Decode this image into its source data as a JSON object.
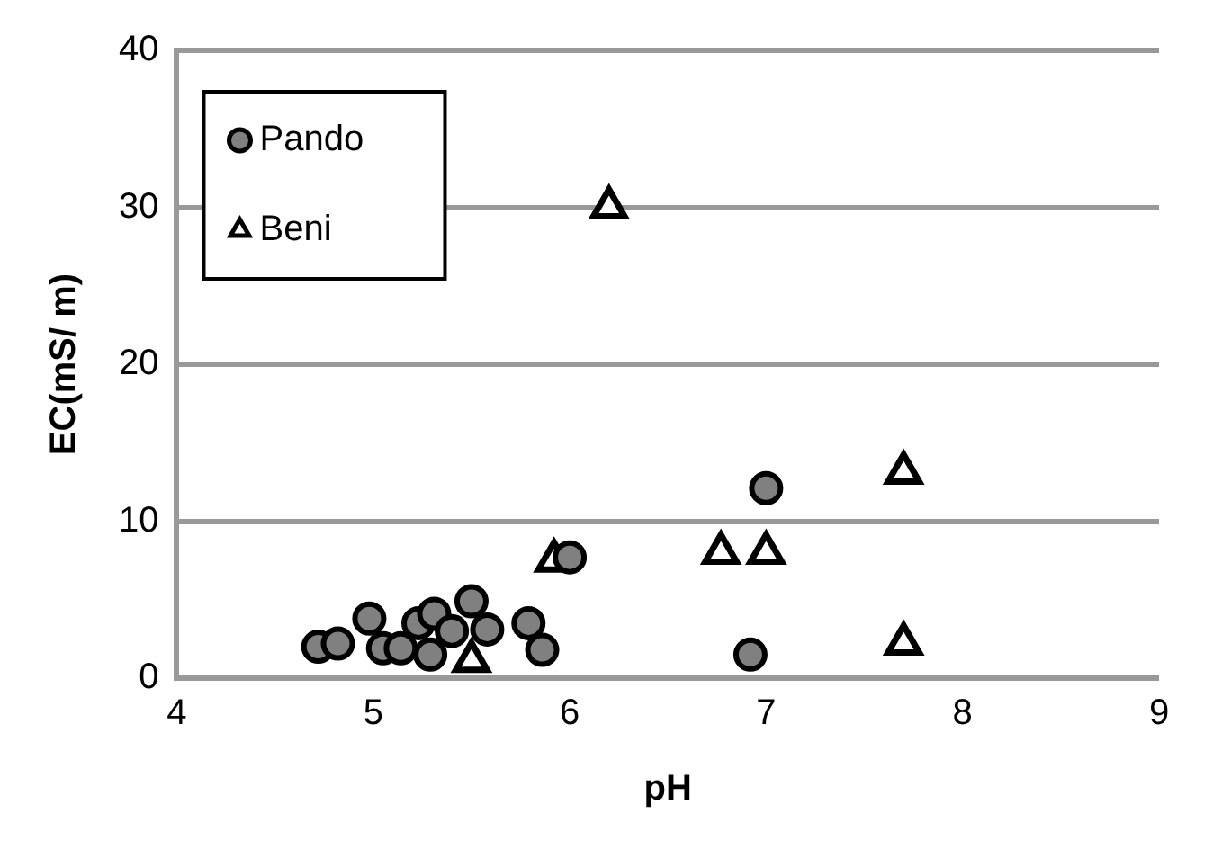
{
  "chart_data": {
    "type": "scatter",
    "xlabel": "pH",
    "ylabel": "EC(mS/ m)",
    "xlim": [
      4,
      9
    ],
    "xticks": [
      4,
      5,
      6,
      7,
      8,
      9
    ],
    "ylim": [
      0,
      40
    ],
    "yticks": [
      0,
      10,
      20,
      30,
      40
    ],
    "grid": "y",
    "legend": "top left",
    "series": [
      {
        "name": "Pando",
        "color": "#808080",
        "marker": "circle",
        "x": [
          4.72,
          4.82,
          4.98,
          5.05,
          5.14,
          5.23,
          5.31,
          5.29,
          5.4,
          5.5,
          5.58,
          5.79,
          5.86,
          6.0,
          7.0,
          6.92
        ],
        "values": [
          2.0,
          2.2,
          3.8,
          1.9,
          1.9,
          3.5,
          4.1,
          1.5,
          3.0,
          4.9,
          3.1,
          3.5,
          1.8,
          7.7,
          12.1,
          1.5
        ]
      },
      {
        "name": "Beni",
        "color": "#000000",
        "marker": "triangle",
        "x": [
          6.2,
          5.92,
          6.77,
          7.0,
          7.7,
          7.7,
          5.5
        ],
        "values": [
          30,
          7.5,
          8,
          8,
          13.1,
          2.2,
          1.1
        ]
      }
    ]
  }
}
